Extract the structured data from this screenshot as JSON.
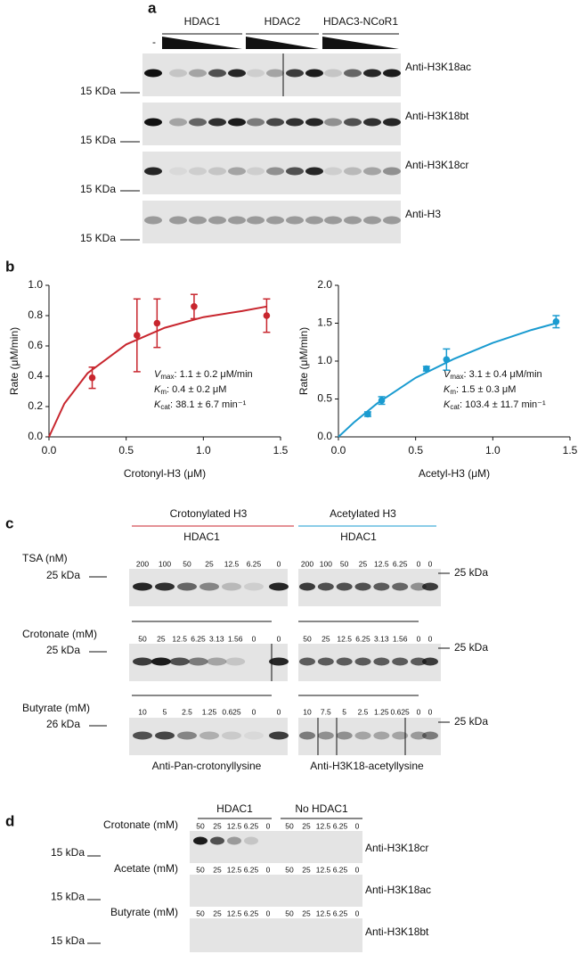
{
  "panel_a": {
    "label": "a",
    "control_lane": "-",
    "groups": [
      "HDAC1",
      "HDAC2",
      "HDAC3-NCoR1"
    ],
    "blots": [
      {
        "antibody": "Anti-H3K18ac",
        "marker": "15 KDa"
      },
      {
        "antibody": "Anti-H3K18bt",
        "marker": "15 KDa"
      },
      {
        "antibody": "Anti-H3K18cr",
        "marker": "15 KDa"
      },
      {
        "antibody": "Anti-H3",
        "marker": "15 KDa"
      }
    ]
  },
  "panel_b": {
    "label": "b"
  },
  "chart_data": [
    {
      "type": "scatter",
      "y_label": "Rate (μM/min)",
      "x_label": "Crotonyl-H3 (μM)",
      "color": "#c8262e",
      "xlim": [
        0,
        1.5
      ],
      "xticks": [
        {
          "value": 0,
          "label": "0.0"
        },
        0.5,
        {
          "value": 1,
          "label": "1.0"
        },
        1.5
      ],
      "ylim": [
        0,
        1
      ],
      "yticks": [
        {
          "value": 0,
          "label": "0.0"
        },
        0.2,
        0.4,
        0.6,
        0.8,
        {
          "value": 1,
          "label": "1.0"
        }
      ],
      "x": [
        0.28,
        0.57,
        0.7,
        0.94,
        1.41
      ],
      "values": [
        0.39,
        0.67,
        0.75,
        0.86,
        0.8
      ],
      "errors": [
        0.07,
        0.24,
        0.16,
        0.08,
        0.11
      ],
      "fit": {
        "x": [
          0,
          0.1,
          0.25,
          0.5,
          0.75,
          1.0,
          1.25,
          1.41
        ],
        "values": [
          0,
          0.22,
          0.42,
          0.61,
          0.72,
          0.79,
          0.83,
          0.86
        ]
      },
      "annotations": [
        {
          "symbol": "V",
          "sub": "max",
          "text": ": 1.1 ± 0.2 μM/min"
        },
        {
          "symbol": "K",
          "sub": "m",
          "text": ": 0.4 ± 0.2 μM"
        },
        {
          "symbol": "K",
          "sub": "cat",
          "text": ": 38.1 ± 6.7 min⁻¹"
        }
      ]
    },
    {
      "type": "scatter",
      "y_label": "Rate (μM/min)",
      "x_label": "Acetyl-H3 (μM)",
      "color": "#1a9bd0",
      "xlim": [
        0,
        1.5
      ],
      "xticks": [
        {
          "value": 0,
          "label": "0.0"
        },
        0.5,
        {
          "value": 1,
          "label": "1.0"
        },
        1.5
      ],
      "ylim": [
        0,
        2
      ],
      "yticks": [
        {
          "value": 0,
          "label": "0.0"
        },
        0.5,
        {
          "value": 1,
          "label": "1.0"
        },
        1.5,
        {
          "value": 2,
          "label": "2.0"
        }
      ],
      "x": [
        0.19,
        0.28,
        0.57,
        0.7,
        1.41
      ],
      "values": [
        0.3,
        0.48,
        0.9,
        1.02,
        1.52
      ],
      "errors": [
        0.03,
        0.05,
        0.03,
        0.14,
        0.08
      ],
      "fit": {
        "x": [
          0,
          0.1,
          0.25,
          0.5,
          0.75,
          1.0,
          1.25,
          1.41
        ],
        "values": [
          0,
          0.19,
          0.44,
          0.78,
          1.03,
          1.24,
          1.41,
          1.5
        ]
      },
      "annotations": [
        {
          "symbol": "V",
          "sub": "max",
          "text": ": 3.1 ± 0.4 μM/min"
        },
        {
          "symbol": "K",
          "sub": "m",
          "text": ": 1.5 ± 0.3 μM"
        },
        {
          "symbol": "K",
          "sub": "cat",
          "text": ": 103.4 ± 11.7 min⁻¹"
        }
      ]
    }
  ],
  "panel_c": {
    "label": "c",
    "sections": [
      {
        "title": "Crotonylated H3",
        "color": "#c8262e",
        "enzyme": "HDAC1"
      },
      {
        "title": "Acetylated H3",
        "color": "#1a9bd0",
        "enzyme": "HDAC1"
      }
    ],
    "rows": [
      {
        "condition": "TSA (nM)",
        "left_marker": "25 kDa",
        "right_marker": "25 kDa",
        "left_lanes": [
          "200",
          "100",
          "50",
          "25",
          "12.5",
          "6.25",
          "0"
        ],
        "right_lanes": [
          "200",
          "100",
          "50",
          "25",
          "12.5",
          "6.25",
          "0",
          "0"
        ]
      },
      {
        "condition": "Crotonate (mM)",
        "left_marker": "25 kDa",
        "right_marker": "25 kDa",
        "left_lanes": [
          "50",
          "25",
          "12.5",
          "6.25",
          "3.13",
          "1.56",
          "0",
          "0"
        ],
        "right_lanes": [
          "50",
          "25",
          "12.5",
          "6.25",
          "3.13",
          "1.56",
          "0",
          "0"
        ]
      },
      {
        "condition": "Butyrate (mM)",
        "left_marker": "26 kDa",
        "right_marker": "25 kDa",
        "left_lanes": [
          "10",
          "5",
          "2.5",
          "1.25",
          "0.625",
          "0",
          "0"
        ],
        "right_lanes": [
          "10",
          "7.5",
          "5",
          "2.5",
          "1.25",
          "0.625",
          "0",
          "0"
        ]
      }
    ],
    "antibodies": [
      "Anti-Pan-crotonyllysine",
      "Anti-H3K18-acetyllysine"
    ]
  },
  "panel_d": {
    "label": "d",
    "groups": [
      "HDAC1",
      "No HDAC1"
    ],
    "rows": [
      {
        "condition": "Crotonate (mM)",
        "lanes": [
          "50",
          "25",
          "12.5",
          "6.25",
          "0",
          "50",
          "25",
          "12.5",
          "6.25",
          "0"
        ],
        "marker": "15 kDa",
        "antibody": "Anti-H3K18cr"
      },
      {
        "condition": "Acetate (mM)",
        "lanes": [
          "50",
          "25",
          "12.5",
          "6.25",
          "0",
          "50",
          "25",
          "12.5",
          "6.25",
          "0"
        ],
        "marker": "15 kDa",
        "antibody": "Anti-H3K18ac"
      },
      {
        "condition": "Butyrate (mM)",
        "lanes": [
          "50",
          "25",
          "12.5",
          "6.25",
          "0",
          "50",
          "25",
          "12.5",
          "6.25",
          "0"
        ],
        "marker": "15 kDa",
        "antibody": "Anti-H3K18bt"
      }
    ]
  }
}
